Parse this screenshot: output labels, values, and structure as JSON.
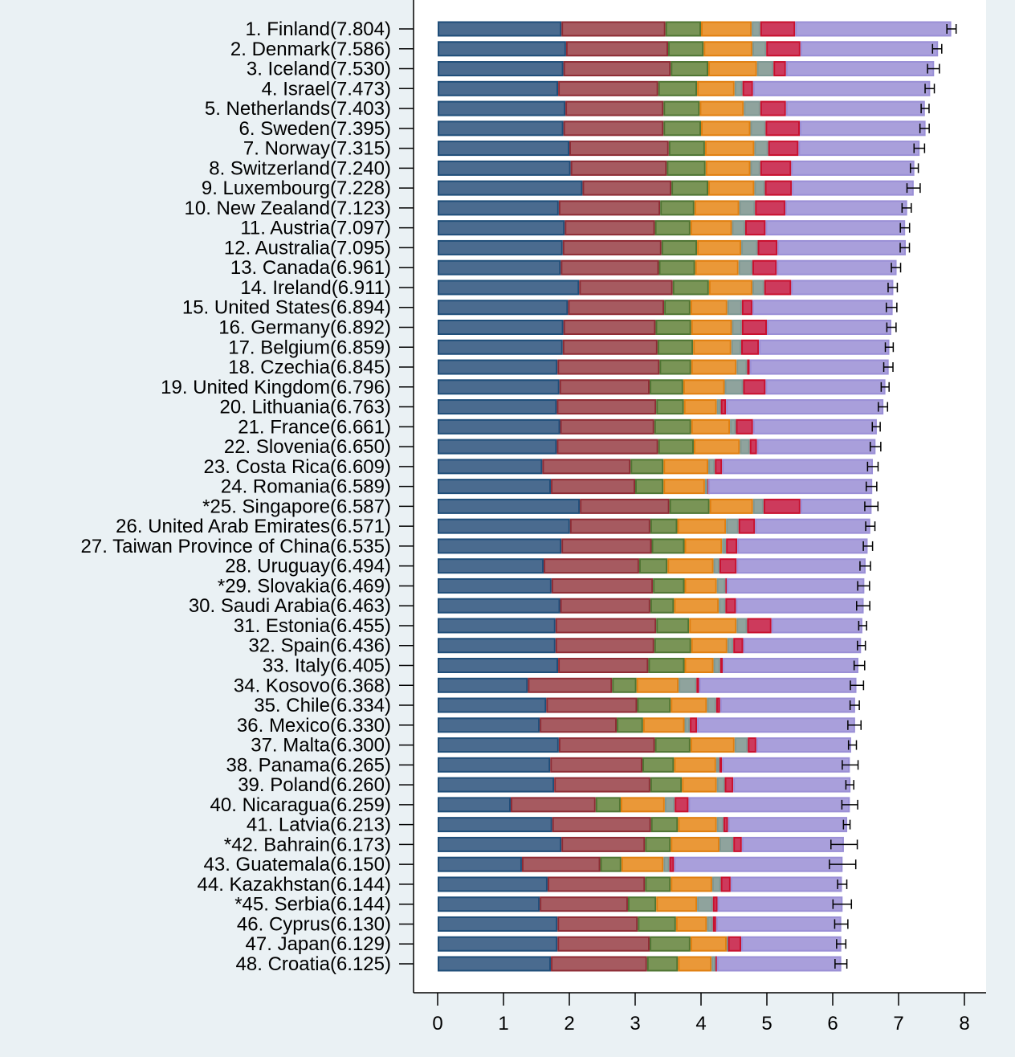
{
  "chart_data": {
    "type": "bar",
    "orientation": "horizontal",
    "stacked": true,
    "xlim": [
      0,
      8
    ],
    "x_ticks": [
      "0",
      "1",
      "2",
      "3",
      "4",
      "5",
      "6",
      "7",
      "8"
    ],
    "grid": false,
    "legend": "none",
    "segment_colors": [
      "#4a6b8f",
      "#a65a60",
      "#799456",
      "#ea9838",
      "#8fa39d",
      "#cd3a5c",
      "#a99fdb"
    ],
    "segment_borders": [
      "#1f4e79",
      "#8e2c35",
      "#4f7533",
      "#e07f10",
      "#7e9893",
      "#c8102e",
      "#9a8fd6"
    ],
    "categories": [
      "1. Finland(7.804)",
      "2. Denmark(7.586)",
      "3. Iceland(7.530)",
      "4. Israel(7.473)",
      "5. Netherlands(7.403)",
      "6. Sweden(7.395)",
      "7. Norway(7.315)",
      "8. Switzerland(7.240)",
      "9. Luxembourg(7.228)",
      "10. New Zealand(7.123)",
      "11. Austria(7.097)",
      "12. Australia(7.095)",
      "13. Canada(6.961)",
      "14. Ireland(6.911)",
      "15. United States(6.894)",
      "16. Germany(6.892)",
      "17. Belgium(6.859)",
      "18. Czechia(6.845)",
      "19. United Kingdom(6.796)",
      "20. Lithuania(6.763)",
      "21. France(6.661)",
      "22. Slovenia(6.650)",
      "23. Costa Rica(6.609)",
      "24. Romania(6.589)",
      "*25. Singapore(6.587)",
      "26. United Arab Emirates(6.571)",
      "27. Taiwan Province of China(6.535)",
      "28. Uruguay(6.494)",
      "*29. Slovakia(6.469)",
      "30. Saudi Arabia(6.463)",
      "31. Estonia(6.455)",
      "32. Spain(6.436)",
      "33. Italy(6.405)",
      "34. Kosovo(6.368)",
      "35. Chile(6.334)",
      "36. Mexico(6.330)",
      "37. Malta(6.300)",
      "38. Panama(6.265)",
      "39. Poland(6.260)",
      "40. Nicaragua(6.259)",
      "41. Latvia(6.213)",
      "*42. Bahrain(6.173)",
      "43. Guatemala(6.150)",
      "44. Kazakhstan(6.144)",
      "*45. Serbia(6.144)",
      "46. Cyprus(6.130)",
      "47. Japan(6.129)",
      "48. Croatia(6.125)"
    ],
    "scores": [
      7.804,
      7.586,
      7.53,
      7.473,
      7.403,
      7.395,
      7.315,
      7.24,
      7.228,
      7.123,
      7.097,
      7.095,
      6.961,
      6.911,
      6.894,
      6.892,
      6.859,
      6.845,
      6.796,
      6.763,
      6.661,
      6.65,
      6.609,
      6.589,
      6.587,
      6.571,
      6.535,
      6.494,
      6.469,
      6.463,
      6.455,
      6.436,
      6.405,
      6.368,
      6.334,
      6.33,
      6.3,
      6.265,
      6.26,
      6.259,
      6.213,
      6.173,
      6.15,
      6.144,
      6.144,
      6.13,
      6.129,
      6.125
    ],
    "segments": [
      [
        1.88,
        1.58,
        0.54,
        0.77,
        0.13,
        0.53,
        2.37
      ],
      [
        1.95,
        1.55,
        0.54,
        0.74,
        0.21,
        0.52,
        2.09
      ],
      [
        1.91,
        1.63,
        0.57,
        0.74,
        0.25,
        0.19,
        2.25
      ],
      [
        1.83,
        1.52,
        0.59,
        0.57,
        0.12,
        0.16,
        2.69
      ],
      [
        1.94,
        1.49,
        0.55,
        0.67,
        0.25,
        0.39,
        2.11
      ],
      [
        1.91,
        1.52,
        0.57,
        0.75,
        0.23,
        0.52,
        1.91
      ],
      [
        2.0,
        1.51,
        0.55,
        0.75,
        0.21,
        0.46,
        1.84
      ],
      [
        2.02,
        1.46,
        0.59,
        0.68,
        0.15,
        0.47,
        1.87
      ],
      [
        2.2,
        1.35,
        0.56,
        0.7,
        0.16,
        0.41,
        1.85
      ],
      [
        1.84,
        1.54,
        0.52,
        0.68,
        0.24,
        0.46,
        1.85
      ],
      [
        1.93,
        1.37,
        0.54,
        0.63,
        0.2,
        0.31,
        2.12
      ],
      [
        1.9,
        1.5,
        0.54,
        0.67,
        0.25,
        0.3,
        1.95
      ],
      [
        1.87,
        1.49,
        0.55,
        0.66,
        0.21,
        0.37,
        1.82
      ],
      [
        2.15,
        1.42,
        0.55,
        0.66,
        0.18,
        0.41,
        1.55
      ],
      [
        1.98,
        1.46,
        0.4,
        0.56,
        0.22,
        0.16,
        2.13
      ],
      [
        1.91,
        1.4,
        0.54,
        0.62,
        0.15,
        0.38,
        1.89
      ],
      [
        1.9,
        1.44,
        0.54,
        0.58,
        0.15,
        0.27,
        1.98
      ],
      [
        1.82,
        1.55,
        0.48,
        0.69,
        0.16,
        0.04,
        2.11
      ],
      [
        1.85,
        1.37,
        0.51,
        0.63,
        0.28,
        0.34,
        1.82
      ],
      [
        1.81,
        1.51,
        0.42,
        0.5,
        0.06,
        0.08,
        2.39
      ],
      [
        1.86,
        1.43,
        0.56,
        0.59,
        0.09,
        0.26,
        1.88
      ],
      [
        1.81,
        1.54,
        0.54,
        0.7,
        0.15,
        0.11,
        1.8
      ],
      [
        1.59,
        1.34,
        0.5,
        0.68,
        0.1,
        0.11,
        2.29
      ],
      [
        1.72,
        1.28,
        0.43,
        0.63,
        0.04,
        0.01,
        2.49
      ],
      [
        2.16,
        1.36,
        0.61,
        0.66,
        0.16,
        0.56,
        1.08
      ],
      [
        2.01,
        1.22,
        0.41,
        0.74,
        0.19,
        0.25,
        1.75
      ],
      [
        1.88,
        1.37,
        0.5,
        0.57,
        0.06,
        0.17,
        1.98
      ],
      [
        1.61,
        1.45,
        0.43,
        0.7,
        0.09,
        0.26,
        1.96
      ],
      [
        1.73,
        1.54,
        0.48,
        0.49,
        0.13,
        0.02,
        2.09
      ],
      [
        1.86,
        1.37,
        0.36,
        0.68,
        0.1,
        0.16,
        1.94
      ],
      [
        1.79,
        1.53,
        0.5,
        0.72,
        0.16,
        0.37,
        1.38
      ],
      [
        1.79,
        1.5,
        0.56,
        0.55,
        0.09,
        0.15,
        1.79
      ],
      [
        1.83,
        1.37,
        0.55,
        0.44,
        0.1,
        0.04,
        2.06
      ],
      [
        1.37,
        1.28,
        0.37,
        0.64,
        0.27,
        0.04,
        2.39
      ],
      [
        1.65,
        1.38,
        0.51,
        0.55,
        0.14,
        0.06,
        2.05
      ],
      [
        1.55,
        1.17,
        0.4,
        0.63,
        0.08,
        0.11,
        2.4
      ],
      [
        1.84,
        1.46,
        0.54,
        0.67,
        0.2,
        0.13,
        1.44
      ],
      [
        1.71,
        1.4,
        0.48,
        0.64,
        0.05,
        0.04,
        1.94
      ],
      [
        1.77,
        1.46,
        0.48,
        0.53,
        0.12,
        0.13,
        1.78
      ],
      [
        1.11,
        1.29,
        0.38,
        0.67,
        0.15,
        0.21,
        2.45
      ],
      [
        1.74,
        1.5,
        0.41,
        0.59,
        0.1,
        0.07,
        1.81
      ],
      [
        1.88,
        1.27,
        0.39,
        0.74,
        0.21,
        0.13,
        1.55
      ],
      [
        1.28,
        1.19,
        0.32,
        0.64,
        0.09,
        0.07,
        2.56
      ],
      [
        1.67,
        1.48,
        0.39,
        0.63,
        0.13,
        0.15,
        1.69
      ],
      [
        1.55,
        1.34,
        0.43,
        0.62,
        0.24,
        0.07,
        1.9
      ],
      [
        1.82,
        1.22,
        0.58,
        0.47,
        0.09,
        0.05,
        1.9
      ],
      [
        1.82,
        1.4,
        0.62,
        0.55,
        0.02,
        0.2,
        1.52
      ],
      [
        1.72,
        1.46,
        0.47,
        0.51,
        0.06,
        0.02,
        1.89
      ]
    ],
    "ci_halfwidth": [
      0.07,
      0.07,
      0.09,
      0.07,
      0.06,
      0.07,
      0.08,
      0.06,
      0.1,
      0.07,
      0.07,
      0.07,
      0.07,
      0.07,
      0.08,
      0.07,
      0.06,
      0.07,
      0.06,
      0.07,
      0.06,
      0.08,
      0.08,
      0.08,
      0.1,
      0.07,
      0.07,
      0.08,
      0.09,
      0.1,
      0.06,
      0.06,
      0.08,
      0.1,
      0.07,
      0.1,
      0.06,
      0.12,
      0.06,
      0.12,
      0.05,
      0.2,
      0.2,
      0.07,
      0.14,
      0.1,
      0.07,
      0.09
    ]
  }
}
